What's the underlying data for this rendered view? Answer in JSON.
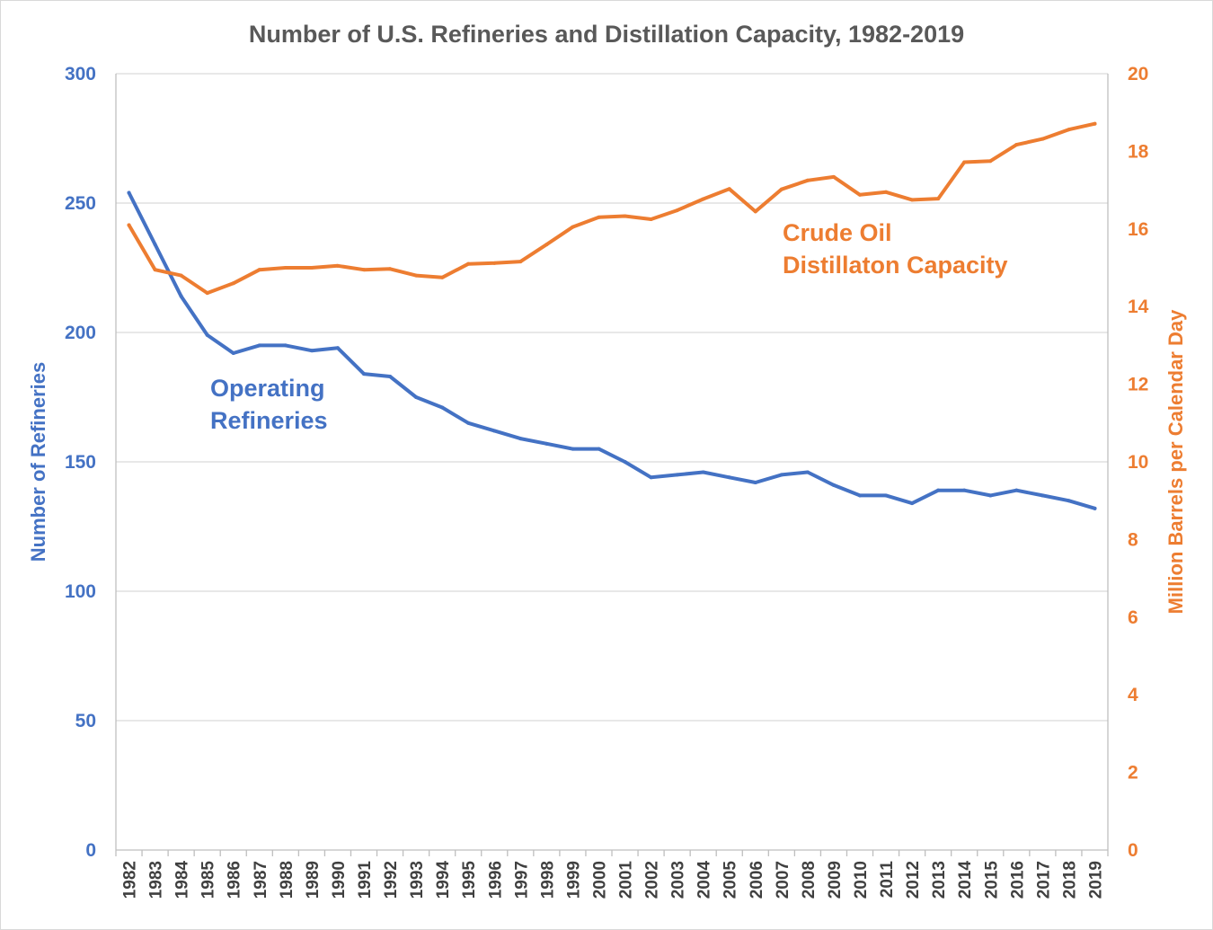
{
  "chart_data": {
    "type": "line",
    "title": "Number of U.S. Refineries and Distillation Capacity, 1982-2019",
    "x": [
      "1982",
      "1983",
      "1984",
      "1985",
      "1986",
      "1987",
      "1988",
      "1989",
      "1990",
      "1991",
      "1992",
      "1993",
      "1994",
      "1995",
      "1996",
      "1997",
      "1998",
      "1999",
      "2000",
      "2001",
      "2002",
      "2003",
      "2004",
      "2005",
      "2006",
      "2007",
      "2008",
      "2009",
      "2010",
      "2011",
      "2012",
      "2013",
      "2014",
      "2015",
      "2016",
      "2017",
      "2018",
      "2019"
    ],
    "y_left": {
      "label": "Number of Refineries",
      "lim": [
        0,
        300
      ],
      "ticks": [
        0,
        50,
        100,
        150,
        200,
        250,
        300
      ],
      "color": "#4472c4"
    },
    "y_right": {
      "label": "Million Barrels per Calendar Day",
      "lim": [
        0,
        20
      ],
      "ticks": [
        0,
        2,
        4,
        6,
        8,
        10,
        12,
        14,
        16,
        18,
        20
      ],
      "color": "#ed7d31"
    },
    "gridlines": true,
    "series": [
      {
        "name": "Operating Refineries",
        "axis": "left",
        "color": "#4472c4",
        "annotation": [
          "Operating",
          "Refineries"
        ],
        "values": [
          254,
          234,
          214,
          199,
          192,
          195,
          195,
          193,
          194,
          184,
          183,
          175,
          171,
          165,
          162,
          159,
          157,
          155,
          155,
          150,
          144,
          145,
          146,
          144,
          142,
          145,
          146,
          141,
          137,
          137,
          134,
          139,
          139,
          137,
          139,
          137,
          135,
          132
        ]
      },
      {
        "name": "Crude Oil Distillation Capacity",
        "axis": "right",
        "color": "#ed7d31",
        "annotation": [
          "Crude Oil",
          "Distillaton Capacity"
        ],
        "values": [
          16.1,
          14.95,
          14.8,
          14.35,
          14.6,
          14.95,
          15.0,
          15.0,
          15.05,
          14.95,
          14.97,
          14.8,
          14.75,
          15.1,
          15.12,
          15.16,
          15.6,
          16.05,
          16.3,
          16.33,
          16.25,
          16.48,
          16.77,
          17.03,
          16.45,
          17.02,
          17.25,
          17.34,
          16.88,
          16.95,
          16.75,
          16.78,
          17.72,
          17.75,
          18.17,
          18.32,
          18.56,
          18.71
        ]
      }
    ]
  }
}
